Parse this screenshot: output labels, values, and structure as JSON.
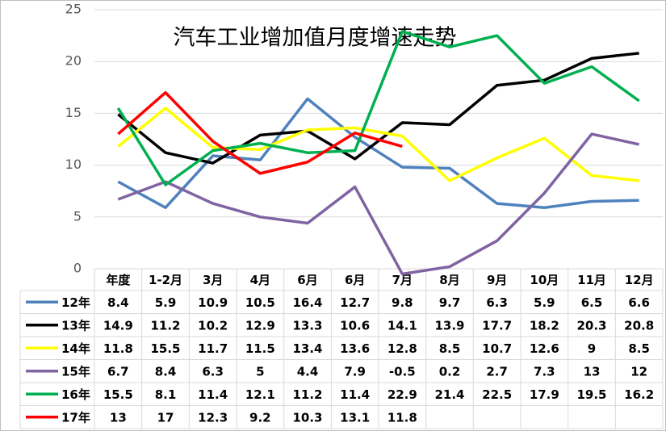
{
  "chart_data": {
    "type": "line",
    "title": "汽车工业增加值月度增速走势",
    "categories": [
      "年度",
      "1-2月",
      "3月",
      "4月",
      "6月",
      "6月",
      "7月",
      "8月",
      "9月",
      "10月",
      "11月",
      "12月"
    ],
    "series": [
      {
        "name": "12年",
        "color": "#4f81bd",
        "values": [
          8.4,
          5.9,
          10.9,
          10.5,
          16.4,
          12.7,
          9.8,
          9.7,
          6.3,
          5.9,
          6.5,
          6.6
        ]
      },
      {
        "name": "13年",
        "color": "#000000",
        "values": [
          14.9,
          11.2,
          10.2,
          12.9,
          13.3,
          10.6,
          14.1,
          13.9,
          17.7,
          18.2,
          20.3,
          20.8
        ]
      },
      {
        "name": "14年",
        "color": "#ffff00",
        "values": [
          11.8,
          15.5,
          11.7,
          11.5,
          13.4,
          13.6,
          12.8,
          8.5,
          10.7,
          12.6,
          9,
          8.5
        ]
      },
      {
        "name": "15年",
        "color": "#8064a2",
        "values": [
          6.7,
          8.4,
          6.3,
          5,
          4.4,
          7.9,
          -0.5,
          0.2,
          2.7,
          7.3,
          13,
          12
        ]
      },
      {
        "name": "16年",
        "color": "#00b050",
        "values": [
          15.5,
          8.1,
          11.4,
          12.1,
          11.2,
          11.4,
          22.9,
          21.4,
          22.5,
          17.9,
          19.5,
          16.2
        ]
      },
      {
        "name": "17年",
        "color": "#ff0000",
        "values": [
          13,
          17,
          12.3,
          9.2,
          10.3,
          13.1,
          11.8,
          null,
          null,
          null,
          null,
          null
        ]
      }
    ],
    "ylim": [
      0,
      25
    ],
    "yticks": [
      0,
      5,
      10,
      15,
      20,
      25
    ],
    "grid": true
  }
}
